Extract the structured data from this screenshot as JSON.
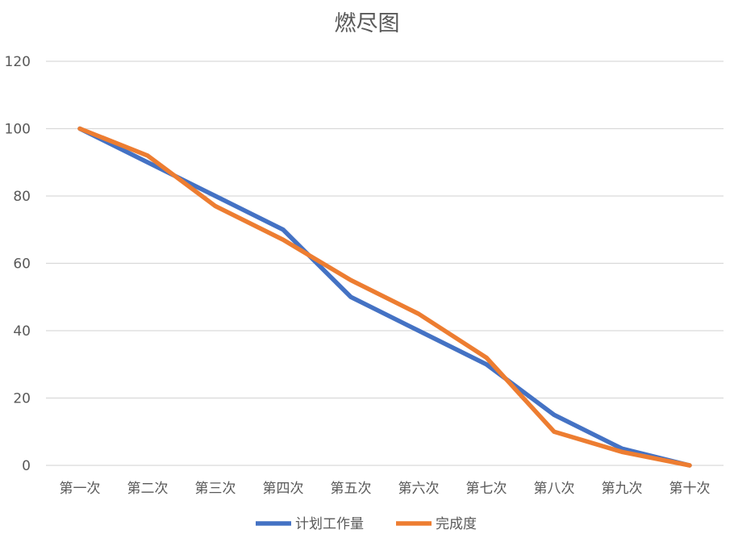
{
  "chart_data": {
    "type": "line",
    "title": "燃尽图",
    "categories": [
      "第一次",
      "第二次",
      "第三次",
      "第四次",
      "第五次",
      "第六次",
      "第七次",
      "第八次",
      "第九次",
      "第十次"
    ],
    "series": [
      {
        "name": "计划工作量",
        "color": "#4472C4",
        "values": [
          100,
          90,
          80,
          70,
          50,
          40,
          30,
          15,
          5,
          0
        ]
      },
      {
        "name": "完成度",
        "color": "#ED7D31",
        "values": [
          100,
          92,
          77,
          67,
          55,
          45,
          32,
          10,
          4,
          0
        ]
      }
    ],
    "ylim": [
      0,
      120
    ],
    "yticks": [
      0,
      20,
      40,
      60,
      80,
      100,
      120
    ],
    "grid": true,
    "legend": "bottom"
  }
}
